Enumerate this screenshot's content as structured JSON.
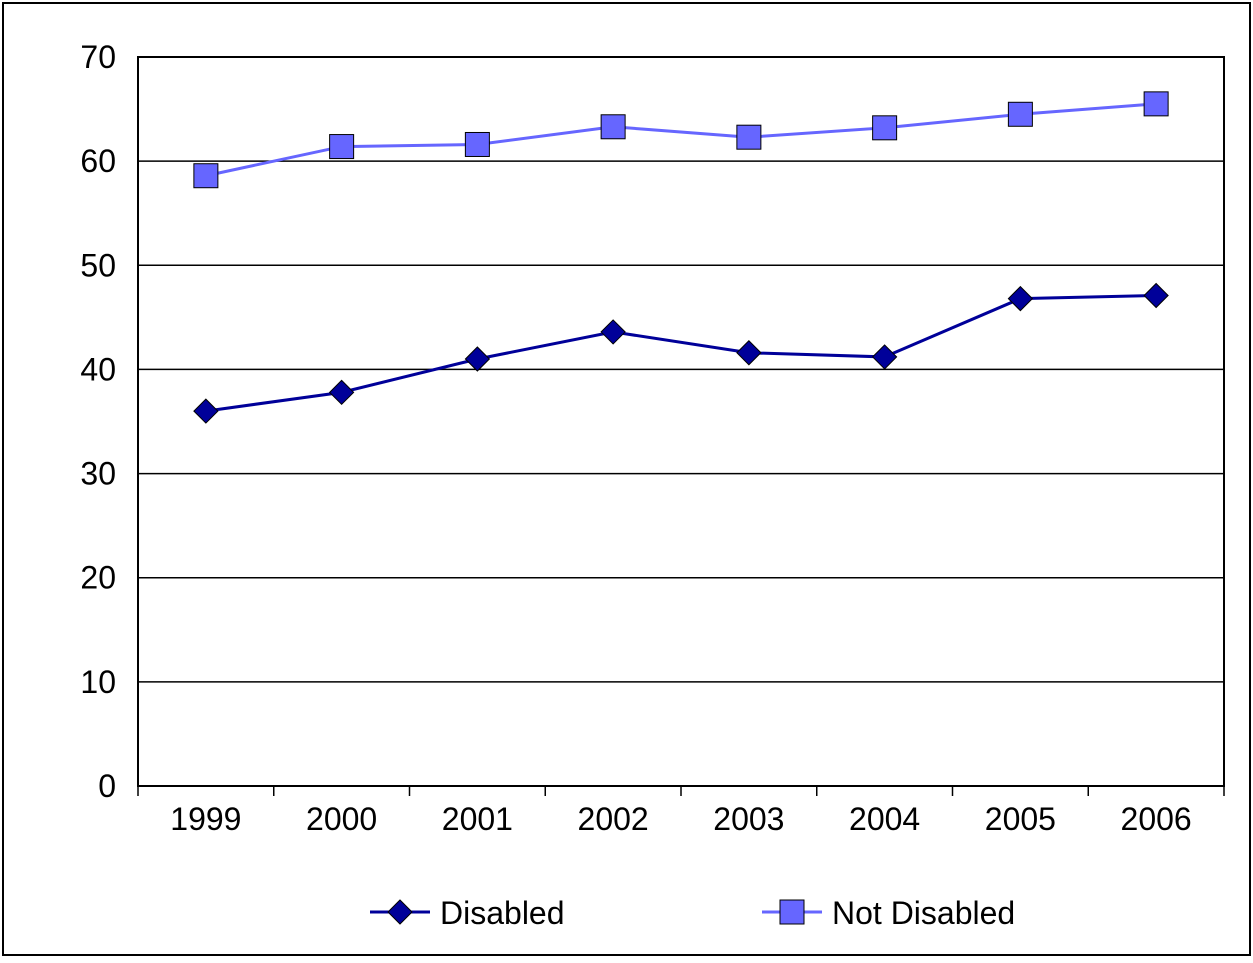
{
  "chart_data": {
    "type": "line",
    "title": "",
    "xlabel": "",
    "ylabel": "",
    "categories": [
      "1999",
      "2000",
      "2001",
      "2002",
      "2003",
      "2004",
      "2005",
      "2006"
    ],
    "ylim": [
      0,
      70
    ],
    "yticks": [
      "0",
      "10",
      "20",
      "30",
      "40",
      "50",
      "60",
      "70"
    ],
    "grid": "horizontal",
    "legend_position": "bottom",
    "series": [
      {
        "name": "Disabled",
        "values": [
          36.0,
          37.8,
          41.0,
          43.6,
          41.6,
          41.2,
          46.8,
          47.1
        ],
        "color": "#000099",
        "marker": "diamond"
      },
      {
        "name": "Not Disabled",
        "values": [
          58.6,
          61.4,
          61.6,
          63.3,
          62.3,
          63.2,
          64.5,
          65.5
        ],
        "color": "#6666FF",
        "marker": "square"
      }
    ]
  }
}
